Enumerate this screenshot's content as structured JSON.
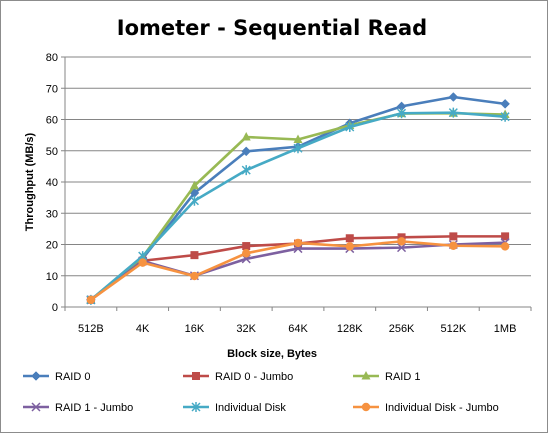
{
  "chart_data": {
    "type": "line",
    "title": "Iometer - Sequential Read",
    "xlabel": "Block size, Bytes",
    "ylabel": "Throughput (MB/s)",
    "categories": [
      "512B",
      "4K",
      "16K",
      "32K",
      "64K",
      "128K",
      "256K",
      "512K",
      "1MB"
    ],
    "ylim": [
      0,
      80
    ],
    "yticks": [
      "0",
      "10",
      "20",
      "30",
      "40",
      "50",
      "60",
      "70",
      "80"
    ],
    "grid": true,
    "legend_position": "bottom",
    "series": [
      {
        "name": "RAID 0",
        "color": "#4a7ebb",
        "marker": "diamond",
        "values": [
          2.3,
          15.5,
          36.5,
          49.8,
          51.3,
          58.8,
          64.2,
          67.2,
          65.0
        ]
      },
      {
        "name": "RAID 0 - Jumbo",
        "color": "#be4b48",
        "marker": "square",
        "values": [
          2.3,
          14.8,
          16.6,
          19.5,
          20.3,
          22.0,
          22.3,
          22.6,
          22.6
        ]
      },
      {
        "name": "RAID 1",
        "color": "#98b954",
        "marker": "triangle",
        "values": [
          2.3,
          16.0,
          38.8,
          54.4,
          53.6,
          58.1,
          61.9,
          62.0,
          61.6
        ]
      },
      {
        "name": "RAID 1 - Jumbo",
        "color": "#7d60a0",
        "marker": "x",
        "values": [
          2.3,
          14.7,
          10.0,
          15.4,
          18.7,
          18.7,
          19.0,
          20.0,
          20.6
        ]
      },
      {
        "name": "Individual Disk",
        "color": "#46aac5",
        "marker": "star",
        "values": [
          2.3,
          16.3,
          34.0,
          43.8,
          50.8,
          57.6,
          62.0,
          62.2,
          60.9
        ]
      },
      {
        "name": "Individual Disk - Jumbo",
        "color": "#f69240",
        "marker": "circle",
        "values": [
          2.3,
          14.2,
          9.9,
          17.2,
          20.5,
          19.4,
          21.0,
          19.6,
          19.4
        ]
      }
    ]
  }
}
